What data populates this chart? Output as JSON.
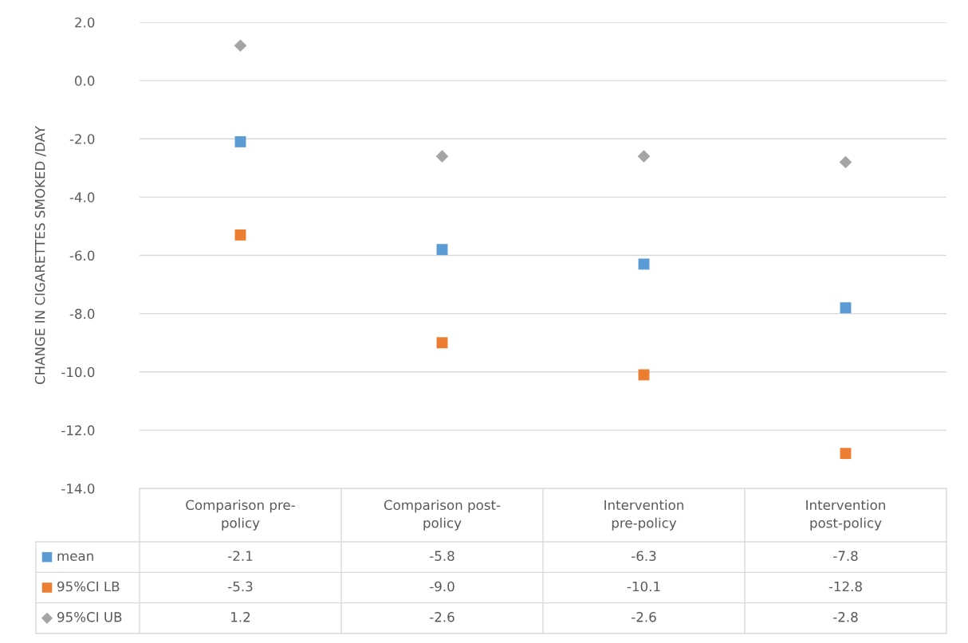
{
  "chart_data": {
    "type": "scatter",
    "ylabel": "CHANGE IN CIGARETTES SMOKED /DAY",
    "categories": [
      "Comparison pre-policy",
      "Comparison post-policy",
      "Intervention pre-policy",
      "Intervention post-policy"
    ],
    "series": [
      {
        "name": "mean",
        "color": "#5b9bd5",
        "marker": "square",
        "values": [
          -2.1,
          -5.8,
          -6.3,
          -7.8
        ],
        "value_labels": [
          "-2.1",
          "-5.8",
          "-6.3",
          "-7.8"
        ]
      },
      {
        "name": "95%CI LB",
        "color": "#ed7d31",
        "marker": "square",
        "values": [
          -5.3,
          -9.0,
          -10.1,
          -12.8
        ],
        "value_labels": [
          "-5.3",
          "-9.0",
          "-10.1",
          "-12.8"
        ]
      },
      {
        "name": "95%CI UB",
        "color": "#a5a5a5",
        "marker": "diamond",
        "values": [
          1.2,
          -2.6,
          -2.6,
          -2.8
        ],
        "value_labels": [
          "1.2",
          "-2.6",
          "-2.6",
          "-2.8"
        ]
      }
    ],
    "ylim": [
      -14,
      2
    ],
    "yticks": [
      {
        "value": -14,
        "label": "-14.0"
      },
      {
        "value": -12,
        "label": "-12.0"
      },
      {
        "value": -10,
        "label": "-10.0"
      },
      {
        "value": -8,
        "label": "-8.0"
      },
      {
        "value": -6,
        "label": "-6.0"
      },
      {
        "value": -4,
        "label": "-4.0"
      },
      {
        "value": -2,
        "label": "-2.0"
      },
      {
        "value": 0,
        "label": "0.0"
      },
      {
        "value": 2,
        "label": "2.0"
      }
    ],
    "grid": "y",
    "legend": "bottom"
  }
}
